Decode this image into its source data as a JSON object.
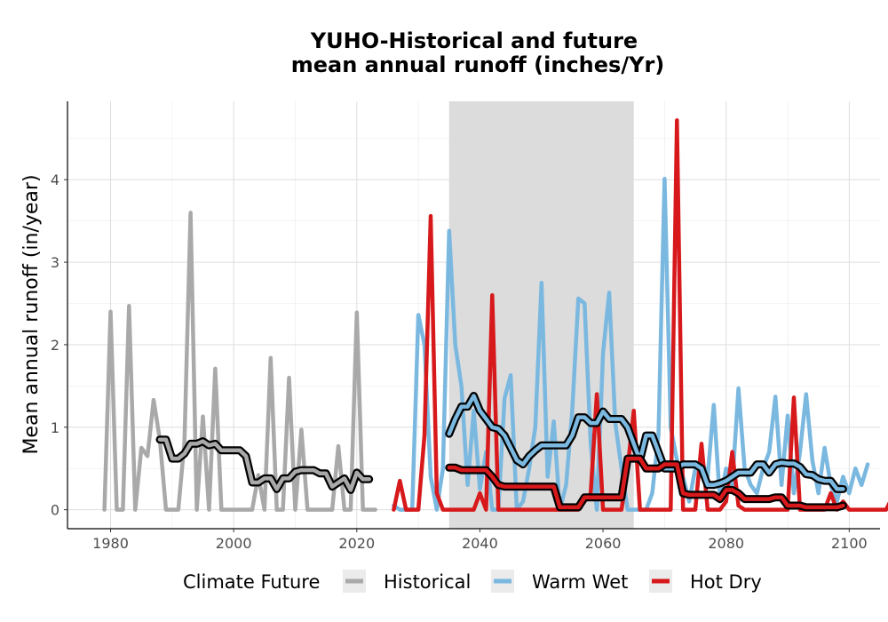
{
  "chart_data": {
    "type": "line",
    "title_line1": "YUHO-Historical and future",
    "title_line2": "mean annual runoff (inches/Yr)",
    "xlabel": "",
    "ylabel": "Mean annual runoff (in/year)",
    "xlim": [
      1973,
      2105
    ],
    "ylim": [
      -0.23,
      4.95
    ],
    "x_ticks": [
      1980,
      2000,
      2020,
      2040,
      2060,
      2080,
      2100
    ],
    "y_ticks": [
      0,
      1,
      2,
      3,
      4
    ],
    "grid": true,
    "shaded_period": [
      2035,
      2065
    ],
    "legend": {
      "title": "Climate Future",
      "position": "bottom",
      "items": [
        "Historical",
        "Warm Wet",
        "Hot Dry"
      ]
    },
    "colors": {
      "Historical": "#a9a9a9",
      "Warm Wet": "#7ab8e0",
      "Hot Dry": "#d7191c",
      "smoothed": "#000000",
      "shade": "#dcdcdc"
    },
    "series": [
      {
        "name": "Historical",
        "start_year": 1979,
        "values": [
          0,
          2.4,
          0,
          0,
          2.47,
          0,
          0.75,
          0.65,
          1.33,
          0.85,
          0,
          0,
          0,
          0.82,
          3.6,
          0,
          1.13,
          0,
          1.71,
          0,
          0,
          0,
          0,
          0,
          0,
          0.42,
          0,
          1.84,
          0,
          0,
          1.6,
          0,
          0.97,
          0,
          0,
          0,
          0,
          0,
          0.77,
          0,
          0,
          2.39,
          0,
          0,
          0
        ]
      },
      {
        "name": "Warm Wet",
        "start_year": 2026,
        "values": [
          0.05,
          0,
          0,
          0,
          2.36,
          2.0,
          0.4,
          0,
          0.5,
          3.38,
          2.0,
          1.5,
          0.3,
          1.2,
          0.25,
          0.7,
          0,
          0,
          1.35,
          1.63,
          0,
          0.1,
          0.5,
          1.0,
          2.75,
          0.4,
          1.07,
          0,
          0.3,
          1.2,
          2.56,
          2.5,
          0.8,
          0,
          1.9,
          2.63,
          1.05,
          0.5,
          0,
          0,
          0,
          0,
          0.2,
          0.9,
          4.01,
          1.0,
          0.6,
          0.4,
          0.1,
          0.5,
          0.6,
          0.4,
          1.27,
          0.1,
          0.5,
          0.3,
          1.47,
          0.5,
          0.3,
          0.2,
          0.5,
          0.7,
          1.37,
          0.3,
          1.14,
          0.2,
          0.7,
          1.4,
          0.6,
          0.2,
          0.75,
          0.3,
          0.1,
          0.4,
          0.2,
          0.5,
          0.3,
          0.55
        ]
      },
      {
        "name": "Hot Dry",
        "start_year": 2026,
        "values": [
          0,
          0.35,
          0,
          0,
          0,
          0.9,
          3.56,
          0.2,
          0,
          0,
          0,
          0,
          0,
          0,
          0.2,
          0,
          2.6,
          0,
          0,
          0,
          0,
          0,
          0,
          0,
          0,
          0,
          0,
          0,
          0,
          0,
          0,
          0.1,
          0.2,
          1.4,
          0,
          0,
          0,
          0,
          0.5,
          1.2,
          0,
          0,
          0,
          0,
          0,
          0,
          4.72,
          0,
          0,
          0,
          0.8,
          0,
          0,
          0,
          0.1,
          0.7,
          0.05,
          0,
          0,
          0,
          0,
          0,
          0,
          0,
          0,
          1.36,
          0,
          0,
          0,
          0,
          0,
          0.2,
          0,
          0.1,
          0,
          0,
          0,
          0,
          0,
          0,
          0,
          0.15,
          1.0
        ]
      },
      {
        "name": "Historical smoothed",
        "x": [
          1988,
          1989,
          1990,
          1991,
          1992,
          1993,
          1994,
          1995,
          1996,
          1997,
          1998,
          1999,
          2000,
          2001,
          2002,
          2003,
          2004,
          2005,
          2006,
          2007,
          2008,
          2009,
          2010,
          2011,
          2012,
          2013,
          2014,
          2015,
          2016,
          2017,
          2018,
          2019,
          2020,
          2021,
          2022
        ],
        "values": [
          0.85,
          0.85,
          0.62,
          0.62,
          0.68,
          0.8,
          0.8,
          0.83,
          0.78,
          0.8,
          0.72,
          0.72,
          0.72,
          0.72,
          0.65,
          0.33,
          0.33,
          0.38,
          0.38,
          0.25,
          0.38,
          0.38,
          0.46,
          0.48,
          0.48,
          0.48,
          0.44,
          0.44,
          0.28,
          0.33,
          0.38,
          0.24,
          0.45,
          0.37,
          0.37
        ]
      },
      {
        "name": "Warm Wet smoothed",
        "x": [
          2035,
          2036,
          2037,
          2038,
          2039,
          2040,
          2041,
          2042,
          2043,
          2044,
          2045,
          2046,
          2047,
          2048,
          2049,
          2050,
          2051,
          2052,
          2053,
          2054,
          2055,
          2056,
          2057,
          2058,
          2059,
          2060,
          2061,
          2062,
          2063,
          2064,
          2065,
          2066,
          2067,
          2068,
          2069,
          2070,
          2071,
          2072,
          2073,
          2074,
          2075,
          2076,
          2077,
          2078,
          2079,
          2080,
          2081,
          2082,
          2083,
          2084,
          2085,
          2086,
          2087,
          2088,
          2089,
          2090,
          2091,
          2092,
          2093,
          2094,
          2095,
          2096,
          2097,
          2098,
          2099
        ],
        "values": [
          0.92,
          1.1,
          1.25,
          1.25,
          1.38,
          1.2,
          1.1,
          1.0,
          0.98,
          0.9,
          0.75,
          0.6,
          0.55,
          0.65,
          0.72,
          0.78,
          0.78,
          0.78,
          0.78,
          0.78,
          0.9,
          1.12,
          1.12,
          1.05,
          1.05,
          1.19,
          1.1,
          1.1,
          1.1,
          1.0,
          0.8,
          0.6,
          0.9,
          0.9,
          0.7,
          0.5,
          0.5,
          0.5,
          0.55,
          0.55,
          0.55,
          0.5,
          0.3,
          0.3,
          0.32,
          0.35,
          0.4,
          0.45,
          0.45,
          0.45,
          0.55,
          0.55,
          0.45,
          0.55,
          0.57,
          0.56,
          0.56,
          0.52,
          0.43,
          0.42,
          0.37,
          0.35,
          0.35,
          0.25,
          0.25
        ]
      },
      {
        "name": "Hot Dry smoothed",
        "x": [
          2035,
          2036,
          2037,
          2038,
          2039,
          2040,
          2041,
          2042,
          2043,
          2044,
          2045,
          2046,
          2047,
          2048,
          2049,
          2050,
          2051,
          2052,
          2053,
          2054,
          2055,
          2056,
          2057,
          2058,
          2059,
          2060,
          2061,
          2062,
          2063,
          2064,
          2065,
          2066,
          2067,
          2068,
          2069,
          2070,
          2071,
          2072,
          2073,
          2074,
          2075,
          2076,
          2077,
          2078,
          2079,
          2080,
          2081,
          2082,
          2083,
          2084,
          2085,
          2086,
          2087,
          2088,
          2089,
          2090,
          2091,
          2092,
          2093,
          2094,
          2095,
          2096,
          2097,
          2098,
          2099
        ],
        "values": [
          0.51,
          0.51,
          0.48,
          0.48,
          0.48,
          0.48,
          0.48,
          0.4,
          0.3,
          0.28,
          0.28,
          0.28,
          0.28,
          0.28,
          0.28,
          0.28,
          0.28,
          0.28,
          0.03,
          0.03,
          0.03,
          0.03,
          0.15,
          0.15,
          0.15,
          0.15,
          0.15,
          0.15,
          0.15,
          0.62,
          0.62,
          0.62,
          0.5,
          0.5,
          0.5,
          0.55,
          0.55,
          0.55,
          0.2,
          0.18,
          0.18,
          0.18,
          0.18,
          0.18,
          0.13,
          0.24,
          0.24,
          0.2,
          0.13,
          0.13,
          0.13,
          0.13,
          0.13,
          0.15,
          0.15,
          0.05,
          0.05,
          0.05,
          0.03,
          0.03,
          0.03,
          0.03,
          0.03,
          0.03,
          0.05
        ]
      }
    ]
  }
}
